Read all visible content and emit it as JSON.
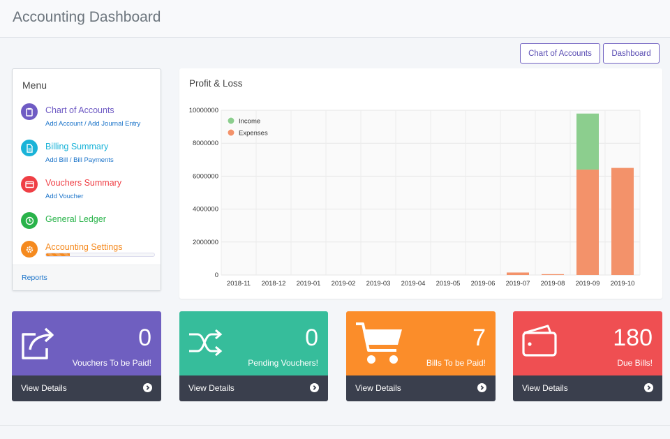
{
  "header": {
    "title": "Accounting Dashboard"
  },
  "top_buttons": {
    "chart_of_accounts": "Chart of Accounts",
    "dashboard": "Dashboard"
  },
  "menu": {
    "title": "Menu",
    "items": [
      {
        "label": "Chart of Accounts",
        "color": "#6f5bc4",
        "links": [
          "Add Account",
          "Add Journal Entry"
        ]
      },
      {
        "label": "Billing Summary",
        "color": "#1ab3d8",
        "links": [
          "Add Bill",
          "Bill Payments"
        ]
      },
      {
        "label": "Vouchers Summary",
        "color": "#ef3f45",
        "links": [
          "Add Voucher"
        ]
      },
      {
        "label": "General Ledger",
        "color": "#29b34a",
        "links": []
      },
      {
        "label": "Accounting Settings",
        "color": "#f58a1f",
        "links": [],
        "progress": 0.22
      }
    ],
    "footer_link": "Reports"
  },
  "chart_card": {
    "title": "Profit & Loss"
  },
  "chart_data": {
    "type": "bar",
    "stacked": true,
    "categories": [
      "2018-11",
      "2018-12",
      "2019-01",
      "2019-02",
      "2019-03",
      "2019-04",
      "2019-05",
      "2019-06",
      "2019-07",
      "2019-08",
      "2019-09",
      "2019-10"
    ],
    "series": [
      {
        "name": "Income",
        "color": "#8cce8e",
        "values": [
          0,
          0,
          0,
          0,
          0,
          0,
          0,
          0,
          0,
          0,
          3400000,
          0
        ]
      },
      {
        "name": "Expenses",
        "color": "#f3926a",
        "values": [
          0,
          0,
          0,
          0,
          0,
          0,
          0,
          0,
          150000,
          50000,
          6400000,
          6500000
        ]
      }
    ],
    "yticks": [
      "0",
      "2000000",
      "4000000",
      "6000000",
      "8000000",
      "10000000"
    ],
    "ylim": [
      0,
      10000000
    ],
    "legend": "top-left",
    "grid": true
  },
  "stats": [
    {
      "value": "0",
      "label": "Vouchers To be Paid!",
      "color": "#6f5fc0",
      "footer": "View Details",
      "icon": "share-icon"
    },
    {
      "value": "0",
      "label": "Pending Vouchers!",
      "color": "#36bd9b",
      "footer": "View Details",
      "icon": "shuffle-icon"
    },
    {
      "value": "7",
      "label": "Bills To be Paid!",
      "color": "#fb8d2a",
      "footer": "View Details",
      "icon": "cart-icon"
    },
    {
      "value": "180",
      "label": "Due Bills!",
      "color": "#ef4f52",
      "footer": "View Details",
      "icon": "wallet-icon"
    }
  ]
}
